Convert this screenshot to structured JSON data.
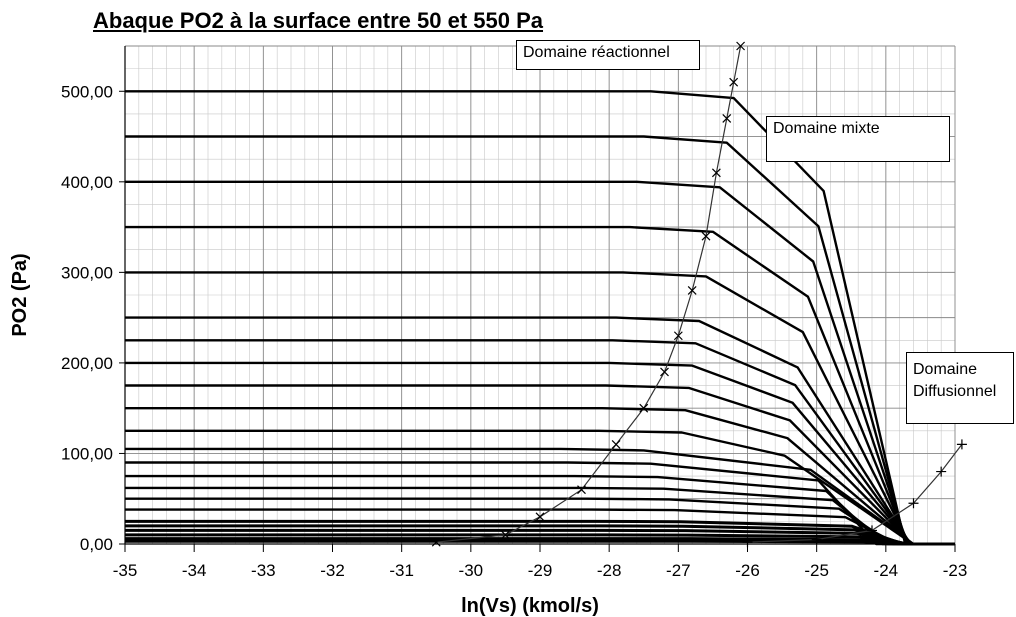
{
  "chart_data": {
    "type": "line",
    "title": "Abaque PO2 à la surface entre 50 et 550 Pa",
    "xlabel": "ln(Vs) (kmol/s)",
    "ylabel": "PO2 (Pa)",
    "xlim": [
      -35,
      -23
    ],
    "ylim": [
      0,
      550
    ],
    "grid": true,
    "x_ticks": [
      "-35",
      "-34",
      "-33",
      "-32",
      "-31",
      "-30",
      "-29",
      "-28",
      "-27",
      "-26",
      "-25",
      "-24",
      "-23"
    ],
    "y_ticks": [
      "0,00",
      "100,00",
      "200,00",
      "300,00",
      "400,00",
      "500,00"
    ],
    "series_levels": [
      500,
      450,
      400,
      350,
      300,
      250,
      225,
      200,
      175,
      150,
      125,
      105,
      90,
      75,
      62,
      50,
      38,
      25,
      20,
      15,
      10,
      6,
      3
    ],
    "boundary_reactionnel": [
      [
        -30.5,
        2
      ],
      [
        -29.5,
        10
      ],
      [
        -29,
        30
      ],
      [
        -28.4,
        60
      ],
      [
        -27.9,
        110
      ],
      [
        -27.5,
        150
      ],
      [
        -27.2,
        190
      ],
      [
        -27,
        230
      ],
      [
        -26.8,
        280
      ],
      [
        -26.6,
        340
      ],
      [
        -26.45,
        410
      ],
      [
        -26.3,
        470
      ],
      [
        -26.2,
        510
      ],
      [
        -26.1,
        550
      ]
    ],
    "boundary_diffusionnel": [
      [
        -26,
        2
      ],
      [
        -25,
        5
      ],
      [
        -24.2,
        15
      ],
      [
        -23.6,
        45
      ],
      [
        -23.2,
        80
      ],
      [
        -22.9,
        110
      ]
    ],
    "annotations": {
      "reactionnel": "Domaine réactionnel",
      "mixte": "Domaine mixte",
      "diffusionnel_line1": "Domaine",
      "diffusionnel_line2": "Diffusionnel"
    }
  }
}
